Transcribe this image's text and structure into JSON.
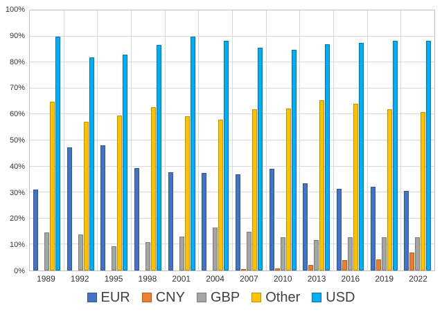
{
  "chart_data": {
    "type": "bar",
    "title": "",
    "xlabel": "",
    "ylabel": "",
    "ylim": [
      0,
      100
    ],
    "ytick_step": 10,
    "ytick_suffix": "%",
    "grid": true,
    "legend_position": "bottom",
    "categories": [
      "1989",
      "1992",
      "1995",
      "1998",
      "2001",
      "2004",
      "2007",
      "2010",
      "2013",
      "2016",
      "2019",
      "2022"
    ],
    "series": [
      {
        "name": "EUR",
        "color": "#4472C4",
        "border": "#2F5597",
        "values": [
          31.0,
          47.3,
          48.2,
          39.4,
          37.9,
          37.5,
          37.0,
          39.0,
          33.4,
          31.3,
          32.3,
          30.5
        ]
      },
      {
        "name": "CNY",
        "color": "#ED7D31",
        "border": "#C55A11",
        "values": [
          0,
          0,
          0,
          0,
          0,
          0,
          0.5,
          0.9,
          2.2,
          4.0,
          4.3,
          7.0
        ]
      },
      {
        "name": "GBP",
        "color": "#A5A5A5",
        "border": "#7B7B7B",
        "values": [
          14.6,
          13.8,
          9.4,
          11.0,
          13.0,
          16.5,
          14.9,
          12.9,
          11.8,
          12.8,
          12.8,
          12.9
        ]
      },
      {
        "name": "Other",
        "color": "#FFC000",
        "border": "#BF9000",
        "values": [
          65.0,
          57.1,
          59.5,
          62.8,
          59.3,
          58.0,
          62.0,
          62.3,
          65.5,
          64.1,
          62.1,
          61.0
        ]
      },
      {
        "name": "USD",
        "color": "#00B0F0",
        "border": "#0070C0",
        "values": [
          90.0,
          81.8,
          83.1,
          86.8,
          90.0,
          88.3,
          85.7,
          84.9,
          87.0,
          87.5,
          88.4,
          88.4
        ]
      }
    ]
  }
}
